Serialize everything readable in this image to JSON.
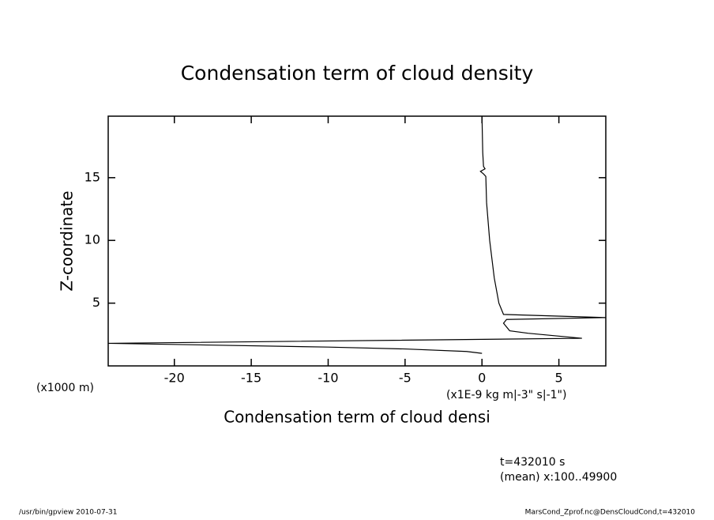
{
  "chart_data": {
    "type": "line",
    "title": "Condensation term of cloud density",
    "xlabel": "Condensation term of cloud densi",
    "ylabel": "Z-coordinate",
    "yunit": "(x1000 m)",
    "xunit": "(x1E-9 kg m|-3\" s|-1\")",
    "annotations": [
      "t=432010 s",
      "(mean) x:100..49900"
    ],
    "footer_left": "/usr/bin/gpview  2010-07-31",
    "footer_right": "MarsCond_Zprof.nc@DensCloudCond,t=432010",
    "series": [
      {
        "name": "DensCloudCond",
        "color": "#000000",
        "x": [
          0,
          0.05,
          0.1,
          0.2,
          -0.1,
          0.1,
          0.25,
          0.3,
          0.5,
          0.8,
          1.1,
          1.4,
          8.05,
          1.6,
          1.4,
          1.8,
          3.0,
          6.5,
          -24.3,
          -10,
          -5,
          -1,
          0
        ],
        "values": [
          19.9,
          17,
          15.9,
          15.7,
          15.5,
          15.3,
          15.1,
          13,
          10,
          7,
          5,
          4.1,
          3.85,
          3.7,
          3.4,
          2.8,
          2.6,
          2.2,
          1.8,
          1.5,
          1.35,
          1.15,
          1.0
        ]
      }
    ],
    "xlim": [
      -24.3,
      8.05
    ],
    "ylim": [
      0,
      19.9
    ],
    "xticks": [
      -20,
      -15,
      -10,
      -5,
      0,
      5
    ],
    "yticks": [
      5,
      10,
      15
    ],
    "grid": false
  }
}
